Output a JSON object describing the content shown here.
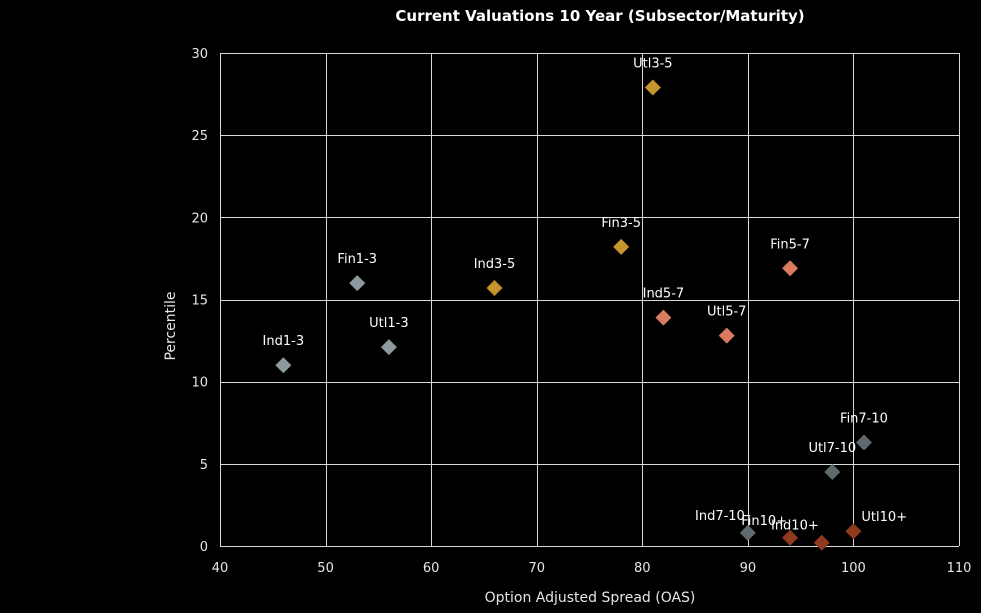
{
  "colors": {
    "background": "#000000",
    "grid": "#d9d9d9",
    "text": "#ffffff"
  },
  "chart_data": {
    "type": "scatter",
    "title": "Current Valuations 10 Year (Subsector/Maturity)",
    "xlabel": "Option Adjusted Spread (OAS)",
    "ylabel": "Percentile",
    "xlim": [
      40,
      110
    ],
    "ylim": [
      0,
      30
    ],
    "xticks": [
      40,
      50,
      60,
      70,
      80,
      90,
      100,
      110
    ],
    "yticks": [
      0,
      5,
      10,
      15,
      20,
      25,
      30
    ],
    "grid": true,
    "legend": "none",
    "points": [
      {
        "label": "Ind1-3",
        "x": 46,
        "y": 11,
        "color": "#8c9aa0",
        "label_pos": "above"
      },
      {
        "label": "Fin1-3",
        "x": 53,
        "y": 16,
        "color": "#8c9aa0",
        "label_pos": "above"
      },
      {
        "label": "Utl1-3",
        "x": 56,
        "y": 12.1,
        "color": "#8c9aa0",
        "label_pos": "above"
      },
      {
        "label": "Ind3-5",
        "x": 66,
        "y": 15.7,
        "color": "#c7952f",
        "label_pos": "above"
      },
      {
        "label": "Fin3-5",
        "x": 78,
        "y": 18.2,
        "color": "#c7952f",
        "label_pos": "above"
      },
      {
        "label": "Utl3-5",
        "x": 81,
        "y": 27.9,
        "color": "#c7952f",
        "label_pos": "above"
      },
      {
        "label": "Ind5-7",
        "x": 82,
        "y": 13.9,
        "color": "#d87b5f",
        "label_pos": "above"
      },
      {
        "label": "Utl5-7",
        "x": 88,
        "y": 12.8,
        "color": "#d87b5f",
        "label_pos": "above"
      },
      {
        "label": "Fin5-7",
        "x": 94,
        "y": 16.9,
        "color": "#d87b5f",
        "label_pos": "above"
      },
      {
        "label": "Fin7-10",
        "x": 101,
        "y": 6.3,
        "color": "#5f6a6e",
        "label_pos": "above"
      },
      {
        "label": "Utl7-10",
        "x": 98,
        "y": 4.5,
        "color": "#5f6a6e",
        "label_pos": "above"
      },
      {
        "label": "Ind7-10",
        "x": 90,
        "y": 0.8,
        "color": "#5f6a6e",
        "label_pos": "above-left"
      },
      {
        "label": "Fin10+",
        "x": 94,
        "y": 0.5,
        "color": "#8e3a1f",
        "label_pos": "above-left"
      },
      {
        "label": "Ind10+",
        "x": 97,
        "y": 0.2,
        "color": "#8e3a1f",
        "label_pos": "above-left"
      },
      {
        "label": "Utl10+",
        "x": 100,
        "y": 0.9,
        "color": "#8e3a1f",
        "label_pos": "above-right"
      }
    ]
  }
}
